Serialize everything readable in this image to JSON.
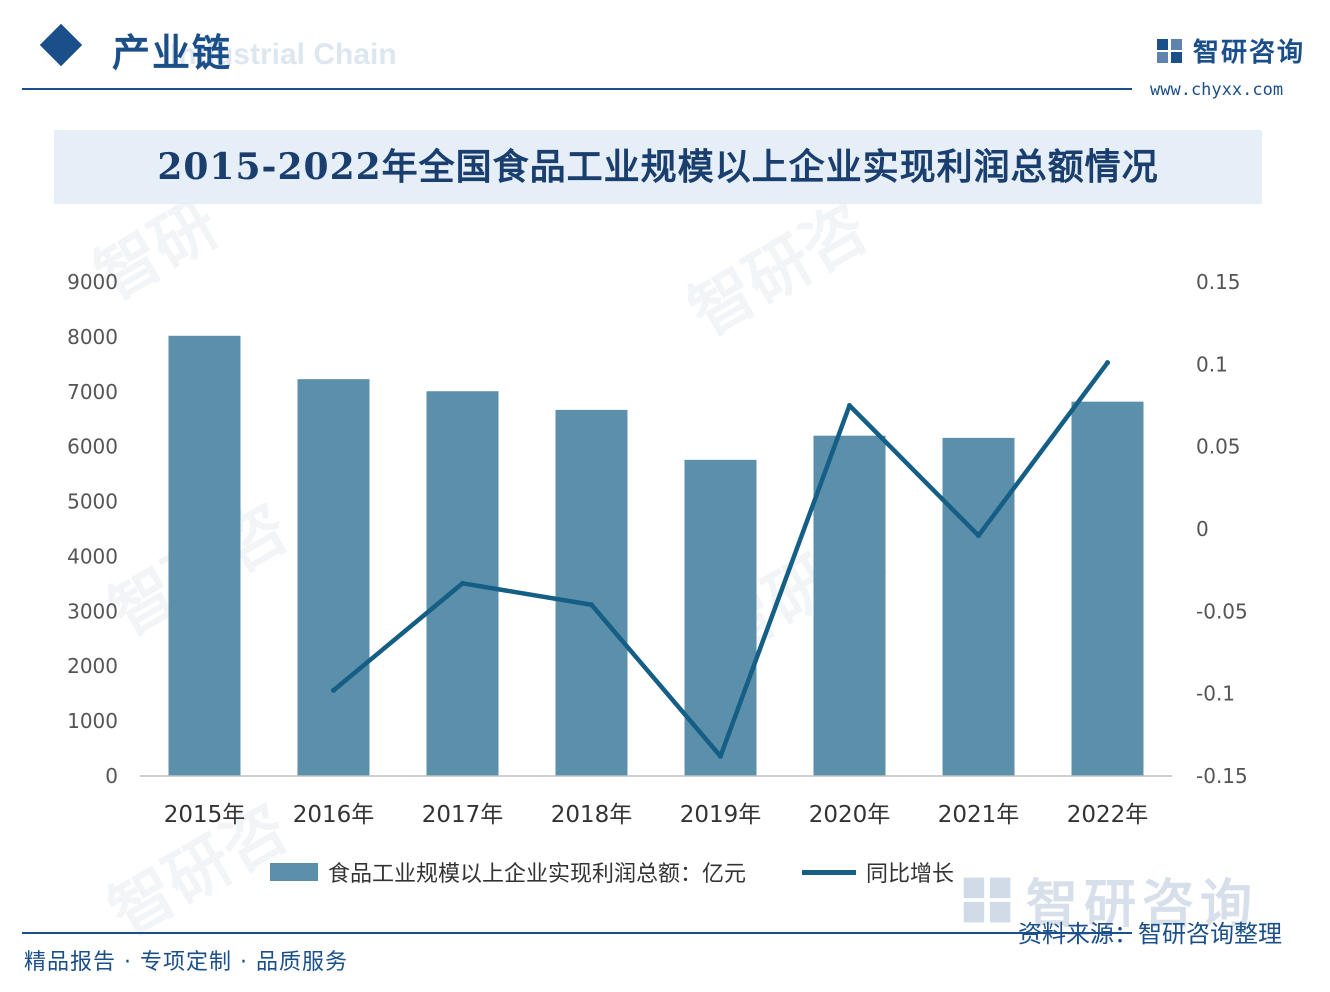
{
  "header": {
    "section_title": "产业链",
    "section_subtitle": "Industrial Chain",
    "brand_name": "智研咨询",
    "brand_url": "www.chyxx.com"
  },
  "footer": {
    "source": "资料来源：智研咨询整理",
    "slogan": "精品报告 · 专项定制 · 品质服务",
    "brand_name": "智研咨询"
  },
  "colors": {
    "brand": "#1b4f8a",
    "bar": "#5b8faa",
    "line": "#155e85"
  },
  "chart_data": {
    "type": "bar+line",
    "title": "2015-2022年全国食品工业规模以上企业实现利润总额情况",
    "categories": [
      "2015年",
      "2016年",
      "2017年",
      "2018年",
      "2019年",
      "2020年",
      "2021年",
      "2022年"
    ],
    "series": [
      {
        "name": "食品工业规模以上企业实现利润总额：亿元",
        "type": "bar",
        "axis": "left",
        "values": [
          8020,
          7230,
          7010,
          6670,
          5760,
          6200,
          6160,
          6820
        ]
      },
      {
        "name": "同比增长",
        "type": "line",
        "axis": "right",
        "values": [
          null,
          -0.098,
          -0.033,
          -0.046,
          -0.138,
          0.075,
          -0.004,
          0.101
        ]
      }
    ],
    "y_left": {
      "range": [
        0,
        9000
      ],
      "ticks": [
        "0",
        "1000",
        "2000",
        "3000",
        "4000",
        "5000",
        "6000",
        "7000",
        "8000",
        "9000"
      ]
    },
    "y_right": {
      "range": [
        -0.15,
        0.15
      ],
      "ticks": [
        "-0.15",
        "-0.1",
        "-0.05",
        "0",
        "0.05",
        "0.1",
        "0.15"
      ]
    },
    "grid": false,
    "legend_position": "bottom"
  }
}
